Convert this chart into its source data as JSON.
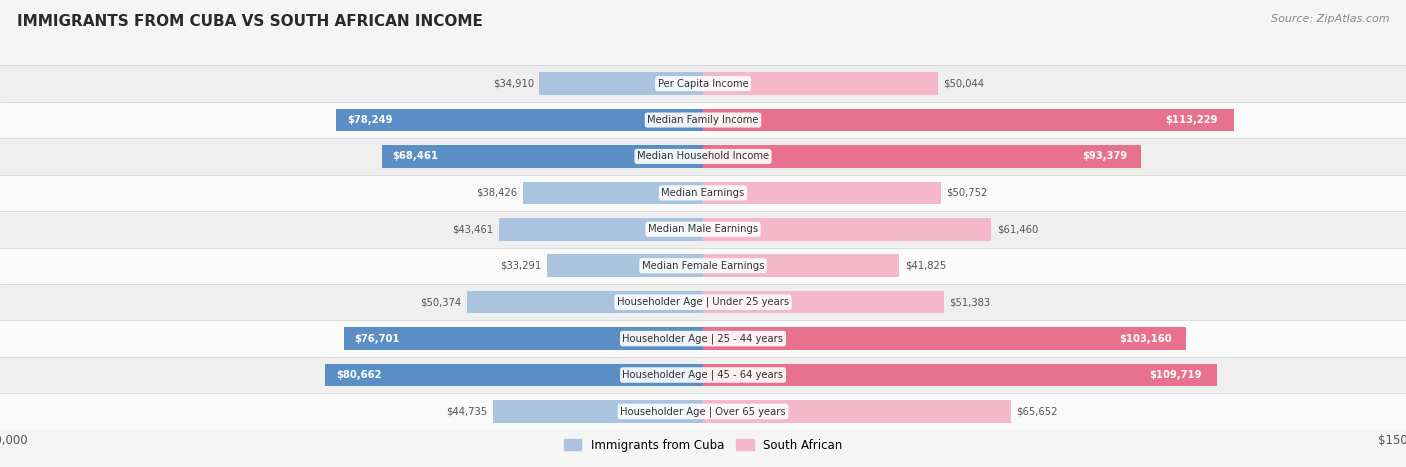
{
  "title": "IMMIGRANTS FROM CUBA VS SOUTH AFRICAN INCOME",
  "source": "Source: ZipAtlas.com",
  "categories": [
    "Per Capita Income",
    "Median Family Income",
    "Median Household Income",
    "Median Earnings",
    "Median Male Earnings",
    "Median Female Earnings",
    "Householder Age | Under 25 years",
    "Householder Age | 25 - 44 years",
    "Householder Age | 45 - 64 years",
    "Householder Age | Over 65 years"
  ],
  "cuba_values": [
    34910,
    78249,
    68461,
    38426,
    43461,
    33291,
    50374,
    76701,
    80662,
    44735
  ],
  "sa_values": [
    50044,
    113229,
    93379,
    50752,
    61460,
    41825,
    51383,
    103160,
    109719,
    65652
  ],
  "cuba_color_light": "#aac4e0",
  "cuba_color_dark": "#5b8ec4",
  "sa_color_light": "#f5b8cb",
  "sa_color_dark": "#e8728e",
  "max_val": 150000,
  "legend_cuba": "Immigrants from Cuba",
  "legend_sa": "South African",
  "row_bg_even": "#efefef",
  "row_bg_odd": "#fafafa",
  "title_color": "#2a2a2a",
  "source_color": "#888888",
  "label_dark": "#555555",
  "label_white": "#ffffff",
  "threshold_dark_cuba": 60000,
  "threshold_dark_sa": 85000
}
